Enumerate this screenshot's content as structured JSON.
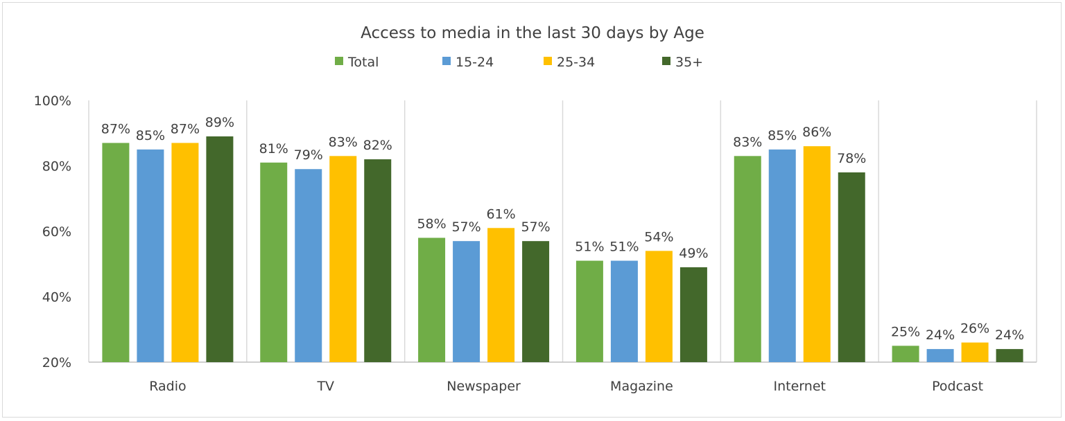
{
  "chart_data": {
    "type": "bar",
    "title": "Access to media in the last 30 days by Age",
    "categories": [
      "Radio",
      "TV",
      "Newspaper",
      "Magazine",
      "Internet",
      "Podcast"
    ],
    "series": [
      {
        "name": "Total",
        "color": "#70AD47",
        "values": [
          87,
          81,
          58,
          51,
          83,
          25
        ]
      },
      {
        "name": "15-24",
        "color": "#5B9BD5",
        "values": [
          85,
          79,
          57,
          51,
          85,
          24
        ]
      },
      {
        "name": "25-34",
        "color": "#FFC000",
        "values": [
          87,
          83,
          61,
          54,
          86,
          26
        ]
      },
      {
        "name": "35+",
        "color": "#43682B",
        "values": [
          89,
          82,
          57,
          49,
          78,
          24
        ]
      }
    ],
    "yticks": [
      "20%",
      "40%",
      "60%",
      "80%",
      "100%"
    ],
    "ylim": [
      20,
      100
    ],
    "yunit": "%",
    "legend": "top",
    "grid": false,
    "xlabel": "",
    "ylabel": ""
  }
}
